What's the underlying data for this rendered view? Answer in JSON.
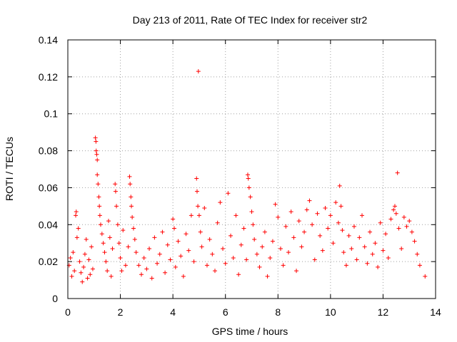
{
  "chart_data": {
    "type": "scatter",
    "title": "Day 213 of 2011, Rate Of TEC Index for receiver str2",
    "xlabel": "GPS time / hours",
    "ylabel": "ROTI / TECUs",
    "xlim": [
      0,
      14
    ],
    "ylim": [
      0,
      0.14
    ],
    "xticks": [
      "0",
      "2",
      "4",
      "6",
      "8",
      "10",
      "12",
      "14"
    ],
    "yticks": [
      "0",
      "0.02",
      "0.04",
      "0.06",
      "0.08",
      "0.1",
      "0.12",
      "0.14"
    ],
    "grid": true,
    "marker": "+",
    "color": "#ff0000",
    "series": [
      {
        "name": "ROTI",
        "points": [
          [
            0.05,
            0.018
          ],
          [
            0.1,
            0.022
          ],
          [
            0.15,
            0.012
          ],
          [
            0.2,
            0.025
          ],
          [
            0.25,
            0.015
          ],
          [
            0.3,
            0.045
          ],
          [
            0.32,
            0.047
          ],
          [
            0.35,
            0.033
          ],
          [
            0.4,
            0.038
          ],
          [
            0.45,
            0.02
          ],
          [
            0.5,
            0.014
          ],
          [
            0.55,
            0.009
          ],
          [
            0.6,
            0.017
          ],
          [
            0.65,
            0.024
          ],
          [
            0.7,
            0.032
          ],
          [
            0.75,
            0.011
          ],
          [
            0.8,
            0.021
          ],
          [
            0.85,
            0.013
          ],
          [
            0.9,
            0.028
          ],
          [
            0.95,
            0.016
          ],
          [
            1.05,
            0.087
          ],
          [
            1.07,
            0.085
          ],
          [
            1.08,
            0.08
          ],
          [
            1.1,
            0.078
          ],
          [
            1.12,
            0.075
          ],
          [
            1.12,
            0.067
          ],
          [
            1.15,
            0.062
          ],
          [
            1.18,
            0.055
          ],
          [
            1.2,
            0.05
          ],
          [
            1.22,
            0.045
          ],
          [
            1.25,
            0.04
          ],
          [
            1.3,
            0.035
          ],
          [
            1.35,
            0.03
          ],
          [
            1.4,
            0.025
          ],
          [
            1.45,
            0.02
          ],
          [
            1.5,
            0.015
          ],
          [
            1.55,
            0.042
          ],
          [
            1.6,
            0.033
          ],
          [
            1.65,
            0.012
          ],
          [
            1.7,
            0.027
          ],
          [
            1.8,
            0.062
          ],
          [
            1.82,
            0.058
          ],
          [
            1.85,
            0.05
          ],
          [
            1.9,
            0.04
          ],
          [
            1.95,
            0.03
          ],
          [
            2.0,
            0.022
          ],
          [
            2.05,
            0.015
          ],
          [
            2.1,
            0.037
          ],
          [
            2.2,
            0.018
          ],
          [
            2.3,
            0.028
          ],
          [
            2.35,
            0.066
          ],
          [
            2.37,
            0.062
          ],
          [
            2.4,
            0.055
          ],
          [
            2.42,
            0.05
          ],
          [
            2.45,
            0.044
          ],
          [
            2.5,
            0.038
          ],
          [
            2.55,
            0.032
          ],
          [
            2.6,
            0.025
          ],
          [
            2.7,
            0.018
          ],
          [
            2.8,
            0.013
          ],
          [
            2.9,
            0.022
          ],
          [
            3.0,
            0.016
          ],
          [
            3.1,
            0.027
          ],
          [
            3.2,
            0.011
          ],
          [
            3.3,
            0.033
          ],
          [
            3.4,
            0.019
          ],
          [
            3.5,
            0.024
          ],
          [
            3.6,
            0.036
          ],
          [
            3.7,
            0.014
          ],
          [
            3.8,
            0.029
          ],
          [
            3.9,
            0.021
          ],
          [
            4.0,
            0.043
          ],
          [
            4.05,
            0.038
          ],
          [
            4.1,
            0.017
          ],
          [
            4.2,
            0.031
          ],
          [
            4.3,
            0.023
          ],
          [
            4.4,
            0.012
          ],
          [
            4.5,
            0.035
          ],
          [
            4.6,
            0.026
          ],
          [
            4.7,
            0.045
          ],
          [
            4.8,
            0.02
          ],
          [
            4.9,
            0.065
          ],
          [
            4.92,
            0.058
          ],
          [
            4.95,
            0.05
          ],
          [
            4.97,
            0.123
          ],
          [
            5.0,
            0.045
          ],
          [
            5.05,
            0.036
          ],
          [
            5.1,
            0.028
          ],
          [
            5.2,
            0.049
          ],
          [
            5.3,
            0.018
          ],
          [
            5.4,
            0.032
          ],
          [
            5.5,
            0.024
          ],
          [
            5.6,
            0.015
          ],
          [
            5.7,
            0.041
          ],
          [
            5.8,
            0.052
          ],
          [
            5.9,
            0.027
          ],
          [
            6.0,
            0.019
          ],
          [
            6.1,
            0.057
          ],
          [
            6.2,
            0.034
          ],
          [
            6.3,
            0.022
          ],
          [
            6.4,
            0.045
          ],
          [
            6.5,
            0.013
          ],
          [
            6.6,
            0.029
          ],
          [
            6.7,
            0.038
          ],
          [
            6.8,
            0.021
          ],
          [
            6.85,
            0.067
          ],
          [
            6.87,
            0.065
          ],
          [
            6.9,
            0.06
          ],
          [
            6.95,
            0.055
          ],
          [
            7.0,
            0.047
          ],
          [
            7.05,
            0.04
          ],
          [
            7.1,
            0.032
          ],
          [
            7.2,
            0.024
          ],
          [
            7.3,
            0.017
          ],
          [
            7.4,
            0.028
          ],
          [
            7.5,
            0.036
          ],
          [
            7.6,
            0.012
          ],
          [
            7.7,
            0.022
          ],
          [
            7.8,
            0.031
          ],
          [
            7.9,
            0.051
          ],
          [
            8.0,
            0.044
          ],
          [
            8.1,
            0.027
          ],
          [
            8.2,
            0.018
          ],
          [
            8.3,
            0.039
          ],
          [
            8.4,
            0.025
          ],
          [
            8.5,
            0.047
          ],
          [
            8.6,
            0.033
          ],
          [
            8.7,
            0.015
          ],
          [
            8.8,
            0.042
          ],
          [
            8.9,
            0.028
          ],
          [
            9.0,
            0.036
          ],
          [
            9.1,
            0.048
          ],
          [
            9.2,
            0.053
          ],
          [
            9.3,
            0.04
          ],
          [
            9.4,
            0.021
          ],
          [
            9.5,
            0.046
          ],
          [
            9.6,
            0.034
          ],
          [
            9.7,
            0.026
          ],
          [
            9.8,
            0.049
          ],
          [
            9.9,
            0.038
          ],
          [
            10.0,
            0.045
          ],
          [
            10.1,
            0.03
          ],
          [
            10.2,
            0.052
          ],
          [
            10.3,
            0.041
          ],
          [
            10.35,
            0.061
          ],
          [
            10.4,
            0.05
          ],
          [
            10.45,
            0.037
          ],
          [
            10.5,
            0.025
          ],
          [
            10.6,
            0.018
          ],
          [
            10.7,
            0.034
          ],
          [
            10.8,
            0.027
          ],
          [
            10.9,
            0.039
          ],
          [
            11.0,
            0.021
          ],
          [
            11.1,
            0.033
          ],
          [
            11.2,
            0.045
          ],
          [
            11.3,
            0.028
          ],
          [
            11.4,
            0.019
          ],
          [
            11.5,
            0.036
          ],
          [
            11.6,
            0.024
          ],
          [
            11.7,
            0.03
          ],
          [
            11.8,
            0.017
          ],
          [
            11.9,
            0.041
          ],
          [
            12.0,
            0.026
          ],
          [
            12.1,
            0.035
          ],
          [
            12.2,
            0.022
          ],
          [
            12.3,
            0.043
          ],
          [
            12.4,
            0.048
          ],
          [
            12.45,
            0.05
          ],
          [
            12.5,
            0.046
          ],
          [
            12.55,
            0.068
          ],
          [
            12.6,
            0.038
          ],
          [
            12.7,
            0.027
          ],
          [
            12.8,
            0.044
          ],
          [
            12.9,
            0.039
          ],
          [
            13.0,
            0.042
          ],
          [
            13.1,
            0.036
          ],
          [
            13.2,
            0.031
          ],
          [
            13.3,
            0.024
          ],
          [
            13.4,
            0.018
          ],
          [
            13.6,
            0.012
          ]
        ]
      }
    ]
  }
}
